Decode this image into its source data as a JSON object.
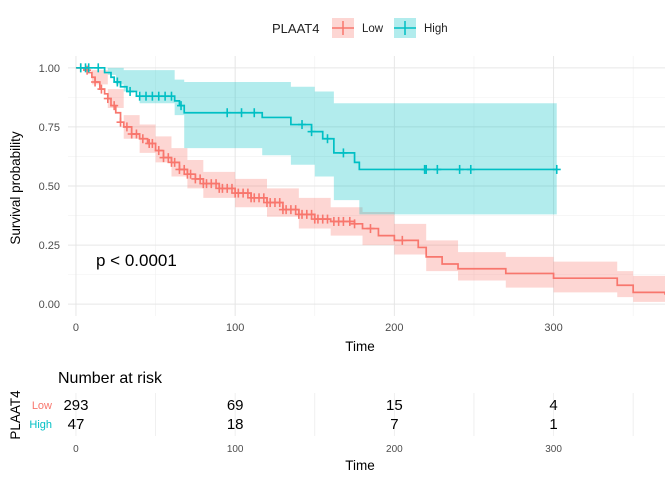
{
  "chart_data": {
    "type": "line",
    "subtype": "kaplan-meier",
    "legend": {
      "title": "PLAAT4",
      "placement": "top-center",
      "entries": [
        {
          "name": "Low",
          "color": "#F8766D"
        },
        {
          "name": "High",
          "color": "#00BFC4"
        }
      ]
    },
    "xlabel": "Time",
    "ylabel": "Survival probability",
    "xlim": [
      -5,
      370
    ],
    "ylim": [
      -0.05,
      1.05
    ],
    "x_ticks": [
      0,
      100,
      200,
      300
    ],
    "x_tick_labels": [
      "0",
      "100",
      "200",
      "300"
    ],
    "y_ticks": [
      0,
      0.25,
      0.5,
      0.75,
      1.0
    ],
    "y_tick_labels": [
      "0.00",
      "0.25",
      "0.50",
      "0.75",
      "1.00"
    ],
    "grid": true,
    "annotation": "p < 0.0001",
    "series": [
      {
        "name": "Low",
        "color": "#F8766D",
        "steps": [
          [
            0,
            1.0
          ],
          [
            5,
            0.99
          ],
          [
            8,
            0.98
          ],
          [
            10,
            0.96
          ],
          [
            12,
            0.94
          ],
          [
            15,
            0.91
          ],
          [
            18,
            0.89
          ],
          [
            20,
            0.87
          ],
          [
            22,
            0.84
          ],
          [
            25,
            0.81
          ],
          [
            28,
            0.77
          ],
          [
            30,
            0.75
          ],
          [
            35,
            0.72
          ],
          [
            40,
            0.7
          ],
          [
            45,
            0.68
          ],
          [
            50,
            0.65
          ],
          [
            55,
            0.62
          ],
          [
            60,
            0.6
          ],
          [
            65,
            0.57
          ],
          [
            70,
            0.55
          ],
          [
            75,
            0.53
          ],
          [
            80,
            0.51
          ],
          [
            90,
            0.49
          ],
          [
            100,
            0.47
          ],
          [
            110,
            0.45
          ],
          [
            120,
            0.43
          ],
          [
            130,
            0.4
          ],
          [
            140,
            0.38
          ],
          [
            150,
            0.36
          ],
          [
            160,
            0.35
          ],
          [
            175,
            0.34
          ],
          [
            180,
            0.32
          ],
          [
            190,
            0.29
          ],
          [
            200,
            0.27
          ],
          [
            215,
            0.24
          ],
          [
            220,
            0.2
          ],
          [
            230,
            0.17
          ],
          [
            240,
            0.15
          ],
          [
            270,
            0.13
          ],
          [
            300,
            0.11
          ],
          [
            340,
            0.08
          ],
          [
            350,
            0.05
          ],
          [
            370,
            0.04
          ]
        ],
        "lower": [
          [
            0,
            1.0
          ],
          [
            10,
            0.93
          ],
          [
            20,
            0.83
          ],
          [
            30,
            0.7
          ],
          [
            40,
            0.64
          ],
          [
            50,
            0.6
          ],
          [
            60,
            0.54
          ],
          [
            70,
            0.49
          ],
          [
            80,
            0.45
          ],
          [
            100,
            0.41
          ],
          [
            120,
            0.37
          ],
          [
            140,
            0.32
          ],
          [
            160,
            0.29
          ],
          [
            180,
            0.25
          ],
          [
            200,
            0.21
          ],
          [
            220,
            0.14
          ],
          [
            240,
            0.1
          ],
          [
            270,
            0.07
          ],
          [
            300,
            0.05
          ],
          [
            340,
            0.03
          ],
          [
            350,
            0.01
          ],
          [
            370,
            0.01
          ]
        ],
        "upper": [
          [
            0,
            1.0
          ],
          [
            10,
            0.99
          ],
          [
            20,
            0.91
          ],
          [
            30,
            0.8
          ],
          [
            40,
            0.76
          ],
          [
            50,
            0.71
          ],
          [
            60,
            0.66
          ],
          [
            70,
            0.61
          ],
          [
            80,
            0.56
          ],
          [
            100,
            0.53
          ],
          [
            120,
            0.49
          ],
          [
            140,
            0.45
          ],
          [
            160,
            0.41
          ],
          [
            180,
            0.39
          ],
          [
            200,
            0.34
          ],
          [
            220,
            0.27
          ],
          [
            240,
            0.22
          ],
          [
            270,
            0.2
          ],
          [
            300,
            0.18
          ],
          [
            340,
            0.14
          ],
          [
            350,
            0.12
          ],
          [
            370,
            0.1
          ]
        ],
        "censor": [
          3,
          7,
          12,
          16,
          20,
          24,
          28,
          32,
          35,
          38,
          42,
          46,
          48,
          52,
          55,
          58,
          60,
          62,
          65,
          68,
          70,
          72,
          75,
          78,
          80,
          82,
          85,
          88,
          90,
          92,
          95,
          98,
          100,
          102,
          105,
          108,
          110,
          112,
          115,
          118,
          120,
          122,
          125,
          128,
          130,
          132,
          135,
          138,
          140,
          142,
          145,
          148,
          150,
          152,
          155,
          158,
          162,
          165,
          168,
          172,
          175,
          185,
          205
        ]
      },
      {
        "name": "High",
        "color": "#00BFC4",
        "steps": [
          [
            0,
            1.0
          ],
          [
            18,
            0.98
          ],
          [
            22,
            0.96
          ],
          [
            24,
            0.94
          ],
          [
            28,
            0.92
          ],
          [
            32,
            0.9
          ],
          [
            38,
            0.88
          ],
          [
            62,
            0.86
          ],
          [
            65,
            0.84
          ],
          [
            68,
            0.81
          ],
          [
            117,
            0.79
          ],
          [
            135,
            0.76
          ],
          [
            148,
            0.73
          ],
          [
            155,
            0.7
          ],
          [
            162,
            0.64
          ],
          [
            175,
            0.6
          ],
          [
            178,
            0.57
          ],
          [
            302,
            0.57
          ]
        ],
        "lower": [
          [
            0,
            1.0
          ],
          [
            20,
            0.97
          ],
          [
            25,
            0.93
          ],
          [
            30,
            0.9
          ],
          [
            40,
            0.85
          ],
          [
            62,
            0.8
          ],
          [
            68,
            0.66
          ],
          [
            117,
            0.63
          ],
          [
            135,
            0.59
          ],
          [
            150,
            0.54
          ],
          [
            162,
            0.44
          ],
          [
            178,
            0.38
          ],
          [
            302,
            0.38
          ]
        ],
        "upper": [
          [
            0,
            1.0
          ],
          [
            20,
            1.0
          ],
          [
            30,
            0.99
          ],
          [
            40,
            0.99
          ],
          [
            62,
            0.95
          ],
          [
            68,
            0.94
          ],
          [
            117,
            0.94
          ],
          [
            135,
            0.92
          ],
          [
            150,
            0.9
          ],
          [
            162,
            0.85
          ],
          [
            178,
            0.85
          ],
          [
            302,
            0.85
          ]
        ],
        "censor": [
          3,
          6,
          8,
          14,
          26,
          34,
          40,
          44,
          48,
          52,
          56,
          60,
          66,
          95,
          104,
          112,
          142,
          148,
          158,
          168,
          219,
          220,
          227,
          241,
          248,
          302
        ]
      }
    ]
  },
  "risk_table": {
    "title": "Number at risk",
    "ylabel": "PLAAT4",
    "xlabel": "Time",
    "x_ticks": [
      0,
      100,
      200,
      300
    ],
    "x_tick_labels": [
      "0",
      "100",
      "200",
      "300"
    ],
    "rows": [
      {
        "name": "Low",
        "color": "#F8766D",
        "values": [
          "293",
          "69",
          "15",
          "4"
        ]
      },
      {
        "name": "High",
        "color": "#00BFC4",
        "values": [
          "47",
          "18",
          "7",
          "1"
        ]
      }
    ]
  }
}
